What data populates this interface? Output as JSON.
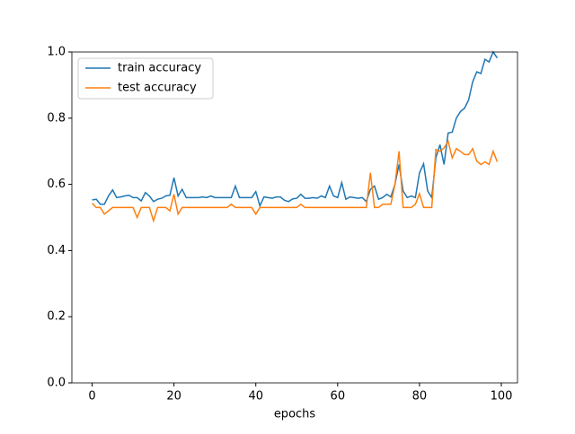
{
  "chart_data": {
    "type": "line",
    "xlabel": "epochs",
    "x": [
      0,
      1,
      2,
      3,
      4,
      5,
      6,
      7,
      8,
      9,
      10,
      11,
      12,
      13,
      14,
      15,
      16,
      17,
      18,
      19,
      20,
      21,
      22,
      23,
      24,
      25,
      26,
      27,
      28,
      29,
      30,
      31,
      32,
      33,
      34,
      35,
      36,
      37,
      38,
      39,
      40,
      41,
      42,
      43,
      44,
      45,
      46,
      47,
      48,
      49,
      50,
      51,
      52,
      53,
      54,
      55,
      56,
      57,
      58,
      59,
      60,
      61,
      62,
      63,
      64,
      65,
      66,
      67,
      68,
      69,
      70,
      71,
      72,
      73,
      74,
      75,
      76,
      77,
      78,
      79,
      80,
      81,
      82,
      83,
      84,
      85,
      86,
      87,
      88,
      89,
      90,
      91,
      92,
      93,
      94,
      95,
      96,
      97,
      98,
      99
    ],
    "series": [
      {
        "name": "train accuracy",
        "color": "#1f77b4",
        "values": [
          0.553,
          0.555,
          0.54,
          0.54,
          0.565,
          0.583,
          0.56,
          0.562,
          0.565,
          0.567,
          0.56,
          0.56,
          0.55,
          0.575,
          0.565,
          0.548,
          0.555,
          0.558,
          0.565,
          0.567,
          0.62,
          0.565,
          0.585,
          0.56,
          0.56,
          0.56,
          0.56,
          0.562,
          0.56,
          0.565,
          0.56,
          0.56,
          0.56,
          0.56,
          0.56,
          0.595,
          0.56,
          0.56,
          0.56,
          0.56,
          0.578,
          0.535,
          0.562,
          0.56,
          0.558,
          0.562,
          0.562,
          0.552,
          0.548,
          0.556,
          0.558,
          0.57,
          0.558,
          0.558,
          0.56,
          0.558,
          0.565,
          0.56,
          0.595,
          0.565,
          0.56,
          0.605,
          0.555,
          0.562,
          0.56,
          0.558,
          0.56,
          0.548,
          0.585,
          0.595,
          0.555,
          0.56,
          0.57,
          0.562,
          0.6,
          0.66,
          0.58,
          0.56,
          0.565,
          0.56,
          0.635,
          0.662,
          0.58,
          0.56,
          0.68,
          0.72,
          0.66,
          0.755,
          0.758,
          0.8,
          0.82,
          0.83,
          0.855,
          0.91,
          0.94,
          0.935,
          0.978,
          0.97,
          1.0,
          0.982
        ]
      },
      {
        "name": "test accuracy",
        "color": "#ff7f0e",
        "values": [
          0.543,
          0.53,
          0.53,
          0.51,
          0.52,
          0.53,
          0.53,
          0.53,
          0.53,
          0.53,
          0.53,
          0.5,
          0.53,
          0.53,
          0.53,
          0.49,
          0.53,
          0.53,
          0.53,
          0.52,
          0.57,
          0.51,
          0.53,
          0.53,
          0.53,
          0.53,
          0.53,
          0.53,
          0.53,
          0.53,
          0.53,
          0.53,
          0.53,
          0.53,
          0.54,
          0.53,
          0.53,
          0.53,
          0.53,
          0.53,
          0.51,
          0.53,
          0.53,
          0.53,
          0.53,
          0.53,
          0.53,
          0.53,
          0.53,
          0.53,
          0.53,
          0.54,
          0.53,
          0.53,
          0.53,
          0.53,
          0.53,
          0.53,
          0.53,
          0.53,
          0.53,
          0.53,
          0.53,
          0.53,
          0.53,
          0.53,
          0.53,
          0.53,
          0.635,
          0.53,
          0.53,
          0.54,
          0.54,
          0.54,
          0.6,
          0.7,
          0.53,
          0.53,
          0.53,
          0.54,
          0.572,
          0.53,
          0.53,
          0.53,
          0.705,
          0.7,
          0.71,
          0.73,
          0.68,
          0.708,
          0.7,
          0.69,
          0.69,
          0.708,
          0.67,
          0.66,
          0.668,
          0.66,
          0.7,
          0.668
        ]
      }
    ],
    "xlim": [
      -4.95,
      103.95
    ],
    "xticks": [
      0,
      20,
      40,
      60,
      80,
      100
    ],
    "ylim": [
      0,
      1
    ],
    "yticks": [
      {
        "value": 0,
        "label": "0.0"
      },
      {
        "value": 0.2,
        "label": "0.2"
      },
      {
        "value": 0.4,
        "label": "0.4"
      },
      {
        "value": 0.6,
        "label": "0.6"
      },
      {
        "value": 0.8,
        "label": "0.8"
      },
      {
        "value": 1,
        "label": "1.0"
      }
    ],
    "legend": "upper left",
    "grid": false
  }
}
